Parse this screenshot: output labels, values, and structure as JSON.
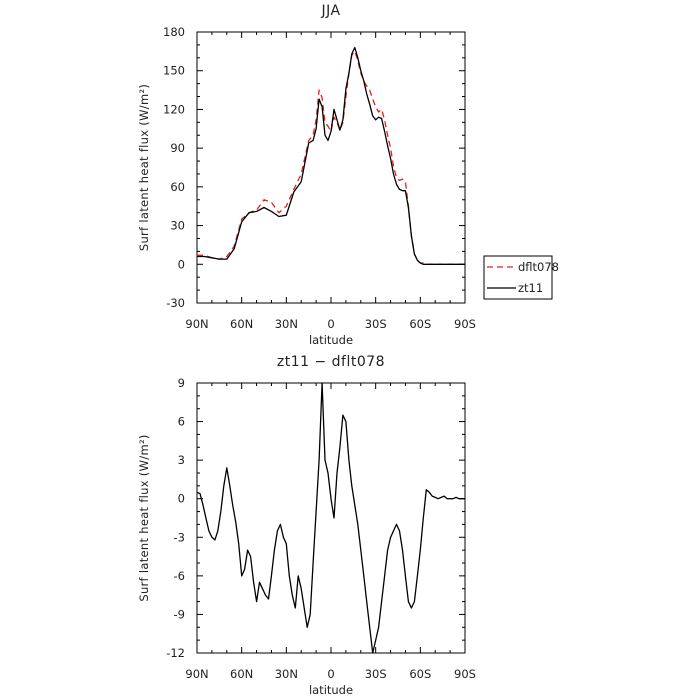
{
  "chart_data": [
    {
      "type": "line",
      "title": "JJA",
      "xlabel": "latitude",
      "ylabel": "Surf latent heat flux (W/m²)",
      "x": [
        -90,
        -85,
        -80,
        -75,
        -70,
        -65,
        -60,
        -55,
        -50,
        -45,
        -40,
        -35,
        -30,
        -25,
        -20,
        -15,
        -12,
        -10,
        -8,
        -6,
        -4,
        -2,
        0,
        2,
        4,
        6,
        8,
        10,
        12,
        14,
        16,
        18,
        20,
        22,
        24,
        26,
        28,
        30,
        32,
        34,
        36,
        38,
        40,
        42,
        44,
        46,
        48,
        50,
        52,
        54,
        56,
        58,
        60,
        62,
        64,
        66,
        68,
        70,
        72,
        75,
        80,
        85,
        90
      ],
      "series": [
        {
          "name": "dflt078",
          "color": "#e32020",
          "dash": "6,4",
          "values": [
            7,
            7,
            5,
            4,
            6,
            14,
            35,
            40,
            42,
            50,
            48,
            40,
            45,
            58,
            70,
            96,
            100,
            112,
            135,
            129,
            110,
            107,
            103,
            114,
            110,
            104,
            110,
            130,
            148,
            162,
            165,
            158,
            148,
            142,
            138,
            135,
            128,
            122,
            118,
            120,
            112,
            100,
            90,
            76,
            67,
            65,
            66,
            64,
            45,
            22,
            8,
            3,
            1,
            1,
            0,
            0,
            0,
            0,
            0,
            0,
            0,
            0,
            0
          ]
        },
        {
          "name": "zt11",
          "color": "#000000",
          "dash": "",
          "values": [
            6,
            6,
            5,
            4,
            4,
            12,
            33,
            40,
            41,
            44,
            41,
            37,
            38,
            56,
            64,
            94,
            96,
            105,
            128,
            122,
            100,
            96,
            103,
            120,
            112,
            104,
            112,
            136,
            148,
            163,
            168,
            160,
            150,
            142,
            132,
            124,
            115,
            112,
            114,
            113,
            103,
            92,
            82,
            70,
            62,
            58,
            57,
            57,
            44,
            22,
            8,
            3,
            1,
            0,
            0,
            0,
            0,
            0,
            0,
            0,
            0,
            0,
            0
          ]
        }
      ],
      "ylim": [
        -30,
        180
      ],
      "yticks": [
        -30,
        0,
        30,
        60,
        90,
        120,
        150,
        180
      ],
      "xticks": [
        -90,
        -60,
        -30,
        0,
        30,
        60,
        90
      ],
      "xtick_labels": [
        "90N",
        "60N",
        "30N",
        "0",
        "30S",
        "60S",
        "90S"
      ],
      "legend": {
        "placement": "right",
        "entries": [
          "dflt078",
          "zt11"
        ]
      },
      "grid": false
    },
    {
      "type": "line",
      "title": "zt11 − dflt078",
      "xlabel": "latitude",
      "ylabel": "Surf latent heat flux (W/m²)",
      "x": [
        -90,
        -88,
        -86,
        -84,
        -82,
        -80,
        -78,
        -76,
        -74,
        -72,
        -70,
        -68,
        -66,
        -64,
        -62,
        -60,
        -58,
        -56,
        -54,
        -52,
        -50,
        -48,
        -46,
        -44,
        -42,
        -40,
        -38,
        -36,
        -34,
        -32,
        -30,
        -28,
        -26,
        -24,
        -22,
        -20,
        -18,
        -16,
        -14,
        -12,
        -10,
        -8,
        -6,
        -4,
        -2,
        0,
        2,
        4,
        6,
        8,
        10,
        12,
        14,
        16,
        18,
        20,
        22,
        24,
        26,
        28,
        30,
        32,
        34,
        36,
        38,
        40,
        42,
        44,
        46,
        48,
        50,
        52,
        54,
        56,
        58,
        60,
        62,
        64,
        66,
        68,
        70,
        72,
        74,
        76,
        78,
        80,
        82,
        84,
        86,
        88,
        90
      ],
      "series": [
        {
          "name": "zt11 − dflt078",
          "color": "#000000",
          "dash": "",
          "values": [
            0.5,
            0.4,
            -0.5,
            -1.5,
            -2.5,
            -3,
            -3.2,
            -2.5,
            -1,
            1,
            2.4,
            1,
            -0.5,
            -1.8,
            -3.5,
            -6,
            -5.5,
            -4,
            -4.5,
            -6.5,
            -8,
            -6.5,
            -7,
            -7.5,
            -7.8,
            -6,
            -4,
            -2.5,
            -2,
            -3,
            -3.5,
            -6,
            -7.5,
            -8.5,
            -6,
            -7,
            -8.5,
            -10,
            -9,
            -5,
            -1,
            3,
            9,
            3,
            2,
            0,
            -1.5,
            2,
            4,
            6.5,
            6,
            3,
            1,
            -0.5,
            -2,
            -4,
            -6,
            -8,
            -10,
            -12,
            -11,
            -10,
            -8,
            -6,
            -4,
            -3,
            -2.5,
            -2,
            -2.5,
            -4,
            -6,
            -8,
            -8.5,
            -8,
            -6,
            -4,
            -1.5,
            0.7,
            0.5,
            0.2,
            0.1,
            0,
            0.1,
            0.2,
            0,
            0,
            0,
            0.1,
            0,
            0,
            0
          ]
        }
      ],
      "ylim": [
        -12,
        9
      ],
      "yticks": [
        -12,
        -9,
        -6,
        -3,
        0,
        3,
        6,
        9
      ],
      "xticks": [
        -90,
        -60,
        -30,
        0,
        30,
        60,
        90
      ],
      "xtick_labels": [
        "90N",
        "60N",
        "30N",
        "0",
        "30S",
        "60S",
        "90S"
      ],
      "grid": false
    }
  ]
}
